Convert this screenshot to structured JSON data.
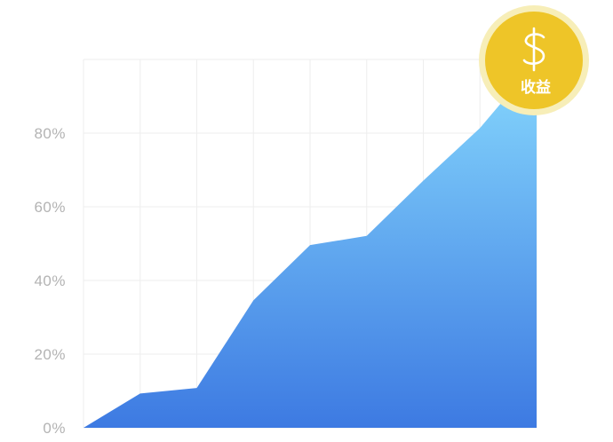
{
  "chart_data": {
    "type": "area",
    "title": "",
    "xlabel": "",
    "ylabel": "",
    "x": [
      0,
      1,
      2,
      3,
      4,
      5,
      6,
      7,
      8
    ],
    "values": [
      0,
      9.3,
      10.8,
      34.6,
      49.6,
      52.1,
      67.1,
      81.4,
      99.5
    ],
    "ylim": [
      0,
      100
    ],
    "yticks": [
      0,
      20,
      40,
      60,
      80
    ],
    "ytick_labels": [
      "0%",
      "20%",
      "40%",
      "60%",
      "80%"
    ],
    "grid": true,
    "legend": "none",
    "colors": {
      "area_top": "#86d8fd",
      "area_bottom": "#3d7ae2",
      "grid": "#eeeeee",
      "tick_text": "#b3b3b3"
    }
  },
  "badge": {
    "symbol": "$",
    "label": "收益",
    "icon": "dollar-icon",
    "colors": {
      "fill": "#eec528",
      "halo": "#f7eeb8"
    }
  }
}
